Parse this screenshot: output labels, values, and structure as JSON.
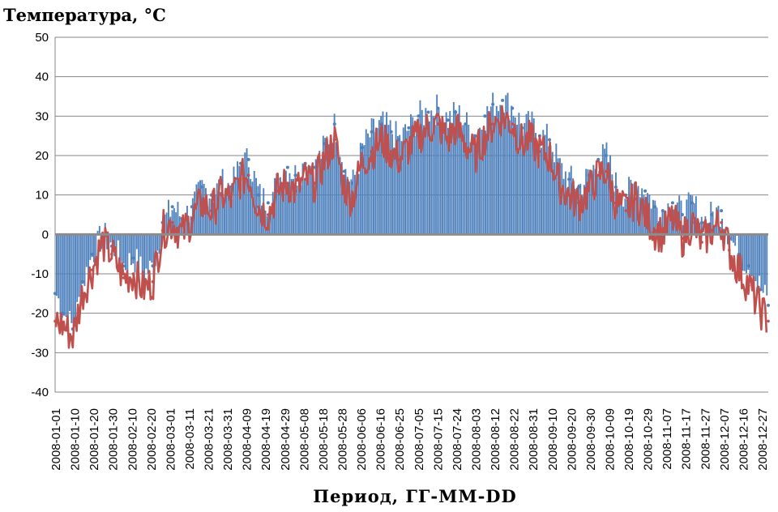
{
  "chart_data": {
    "type": "line",
    "ylabel": "Температура, °С",
    "xlabel": "Период, ГГ-ММ-DD",
    "ylim": [
      -40,
      50
    ],
    "yticks": [
      50,
      40,
      30,
      20,
      10,
      0,
      -10,
      -20,
      -30,
      -40
    ],
    "grid": true,
    "x_start": "2008-01-01",
    "x_end": "2008-12-31",
    "x_tick_labels": [
      "2008-01-01",
      "2008-01-10",
      "2008-01-20",
      "2008-01-30",
      "2008-02-10",
      "2008-02-20",
      "2008-03-01",
      "2008-03-11",
      "2008-03-21",
      "2008-03-31",
      "2008-04-09",
      "2008-04-19",
      "2008-04-29",
      "2008-05-08",
      "2008-05-18",
      "2008-05-28",
      "2008-06-06",
      "2008-06-16",
      "2008-06-25",
      "2008-07-05",
      "2008-07-15",
      "2008-07-24",
      "2008-08-03",
      "2008-08-12",
      "2008-08-22",
      "2008-08-31",
      "2008-09-10",
      "2008-09-20",
      "2008-09-30",
      "2008-10-09",
      "2008-10-19",
      "2008-10-29",
      "2008-11-07",
      "2008-11-17",
      "2008-11-27",
      "2008-12-07",
      "2008-12-16",
      "2008-12-27"
    ],
    "series": [
      {
        "color": "#4f81bd",
        "style": "bars",
        "points": [
          [
            "2008-01-01",
            -15
          ],
          [
            "2008-01-05",
            -20
          ],
          [
            "2008-01-10",
            -24
          ],
          [
            "2008-01-15",
            -12
          ],
          [
            "2008-01-20",
            -5
          ],
          [
            "2008-01-25",
            0
          ],
          [
            "2008-01-30",
            -3
          ],
          [
            "2008-02-05",
            -8
          ],
          [
            "2008-02-10",
            -6
          ],
          [
            "2008-02-15",
            -10
          ],
          [
            "2008-02-20",
            -8
          ],
          [
            "2008-02-25",
            3
          ],
          [
            "2008-03-01",
            7
          ],
          [
            "2008-03-06",
            4
          ],
          [
            "2008-03-11",
            7
          ],
          [
            "2008-03-16",
            12
          ],
          [
            "2008-03-21",
            10
          ],
          [
            "2008-03-26",
            13
          ],
          [
            "2008-03-31",
            12
          ],
          [
            "2008-04-05",
            18
          ],
          [
            "2008-04-09",
            19
          ],
          [
            "2008-04-14",
            10
          ],
          [
            "2008-04-19",
            8
          ],
          [
            "2008-04-24",
            14
          ],
          [
            "2008-04-29",
            17
          ],
          [
            "2008-05-03",
            15
          ],
          [
            "2008-05-08",
            18
          ],
          [
            "2008-05-13",
            17
          ],
          [
            "2008-05-18",
            23
          ],
          [
            "2008-05-23",
            28
          ],
          [
            "2008-05-28",
            16
          ],
          [
            "2008-06-01",
            13
          ],
          [
            "2008-06-06",
            22
          ],
          [
            "2008-06-11",
            26
          ],
          [
            "2008-06-16",
            28
          ],
          [
            "2008-06-21",
            26
          ],
          [
            "2008-06-25",
            24
          ],
          [
            "2008-06-30",
            27
          ],
          [
            "2008-07-05",
            30
          ],
          [
            "2008-07-10",
            31
          ],
          [
            "2008-07-15",
            32
          ],
          [
            "2008-07-20",
            29
          ],
          [
            "2008-07-24",
            31
          ],
          [
            "2008-07-29",
            28
          ],
          [
            "2008-08-03",
            25
          ],
          [
            "2008-08-08",
            30
          ],
          [
            "2008-08-12",
            33
          ],
          [
            "2008-08-17",
            34
          ],
          [
            "2008-08-22",
            32
          ],
          [
            "2008-08-27",
            27
          ],
          [
            "2008-08-31",
            28
          ],
          [
            "2008-09-05",
            25
          ],
          [
            "2008-09-10",
            24
          ],
          [
            "2008-09-15",
            17
          ],
          [
            "2008-09-20",
            14
          ],
          [
            "2008-09-25",
            12
          ],
          [
            "2008-09-30",
            15
          ],
          [
            "2008-10-05",
            19
          ],
          [
            "2008-10-09",
            20
          ],
          [
            "2008-10-14",
            12
          ],
          [
            "2008-10-19",
            10
          ],
          [
            "2008-10-24",
            13
          ],
          [
            "2008-10-29",
            11
          ],
          [
            "2008-11-03",
            7
          ],
          [
            "2008-11-07",
            6
          ],
          [
            "2008-11-12",
            8
          ],
          [
            "2008-11-17",
            5
          ],
          [
            "2008-11-22",
            8
          ],
          [
            "2008-11-27",
            3
          ],
          [
            "2008-12-02",
            5
          ],
          [
            "2008-12-07",
            6
          ],
          [
            "2008-12-11",
            -1
          ],
          [
            "2008-12-16",
            -5
          ],
          [
            "2008-12-21",
            -8
          ],
          [
            "2008-12-27",
            -14
          ],
          [
            "2008-12-31",
            -18
          ]
        ]
      },
      {
        "color": "#c0504d",
        "style": "line",
        "points": [
          [
            "2008-01-01",
            -22
          ],
          [
            "2008-01-05",
            -23
          ],
          [
            "2008-01-10",
            -26
          ],
          [
            "2008-01-15",
            -15
          ],
          [
            "2008-01-20",
            -9
          ],
          [
            "2008-01-25",
            -2
          ],
          [
            "2008-01-30",
            -5
          ],
          [
            "2008-02-05",
            -11
          ],
          [
            "2008-02-10",
            -10
          ],
          [
            "2008-02-15",
            -14
          ],
          [
            "2008-02-20",
            -12
          ],
          [
            "2008-02-25",
            1
          ],
          [
            "2008-03-01",
            3
          ],
          [
            "2008-03-06",
            0
          ],
          [
            "2008-03-11",
            4
          ],
          [
            "2008-03-16",
            8
          ],
          [
            "2008-03-21",
            6
          ],
          [
            "2008-03-26",
            10
          ],
          [
            "2008-03-31",
            9
          ],
          [
            "2008-04-05",
            14
          ],
          [
            "2008-04-09",
            15
          ],
          [
            "2008-04-14",
            7
          ],
          [
            "2008-04-19",
            5
          ],
          [
            "2008-04-24",
            11
          ],
          [
            "2008-04-29",
            13
          ],
          [
            "2008-05-03",
            11
          ],
          [
            "2008-05-08",
            14
          ],
          [
            "2008-05-13",
            13
          ],
          [
            "2008-05-18",
            19
          ],
          [
            "2008-05-23",
            24
          ],
          [
            "2008-05-28",
            12
          ],
          [
            "2008-06-01",
            9
          ],
          [
            "2008-06-06",
            18
          ],
          [
            "2008-06-11",
            21
          ],
          [
            "2008-06-16",
            24
          ],
          [
            "2008-06-21",
            21
          ],
          [
            "2008-06-25",
            19
          ],
          [
            "2008-06-30",
            22
          ],
          [
            "2008-07-05",
            25
          ],
          [
            "2008-07-10",
            27
          ],
          [
            "2008-07-15",
            28
          ],
          [
            "2008-07-20",
            24
          ],
          [
            "2008-07-24",
            27
          ],
          [
            "2008-07-29",
            23
          ],
          [
            "2008-08-03",
            20
          ],
          [
            "2008-08-08",
            25
          ],
          [
            "2008-08-12",
            28
          ],
          [
            "2008-08-17",
            30
          ],
          [
            "2008-08-22",
            28
          ],
          [
            "2008-08-27",
            23
          ],
          [
            "2008-08-31",
            24
          ],
          [
            "2008-09-05",
            21
          ],
          [
            "2008-09-10",
            20
          ],
          [
            "2008-09-15",
            13
          ],
          [
            "2008-09-20",
            10
          ],
          [
            "2008-09-25",
            8
          ],
          [
            "2008-09-30",
            11
          ],
          [
            "2008-10-05",
            15
          ],
          [
            "2008-10-09",
            16
          ],
          [
            "2008-10-14",
            8
          ],
          [
            "2008-10-19",
            6
          ],
          [
            "2008-10-24",
            9
          ],
          [
            "2008-10-29",
            5
          ],
          [
            "2008-11-03",
            1
          ],
          [
            "2008-11-07",
            0
          ],
          [
            "2008-11-12",
            4
          ],
          [
            "2008-11-17",
            -1
          ],
          [
            "2008-11-22",
            3
          ],
          [
            "2008-11-27",
            -2
          ],
          [
            "2008-12-02",
            1
          ],
          [
            "2008-12-07",
            3
          ],
          [
            "2008-12-11",
            -4
          ],
          [
            "2008-12-16",
            -9
          ],
          [
            "2008-12-21",
            -13
          ],
          [
            "2008-12-27",
            -19
          ],
          [
            "2008-12-31",
            -22
          ]
        ]
      }
    ]
  }
}
